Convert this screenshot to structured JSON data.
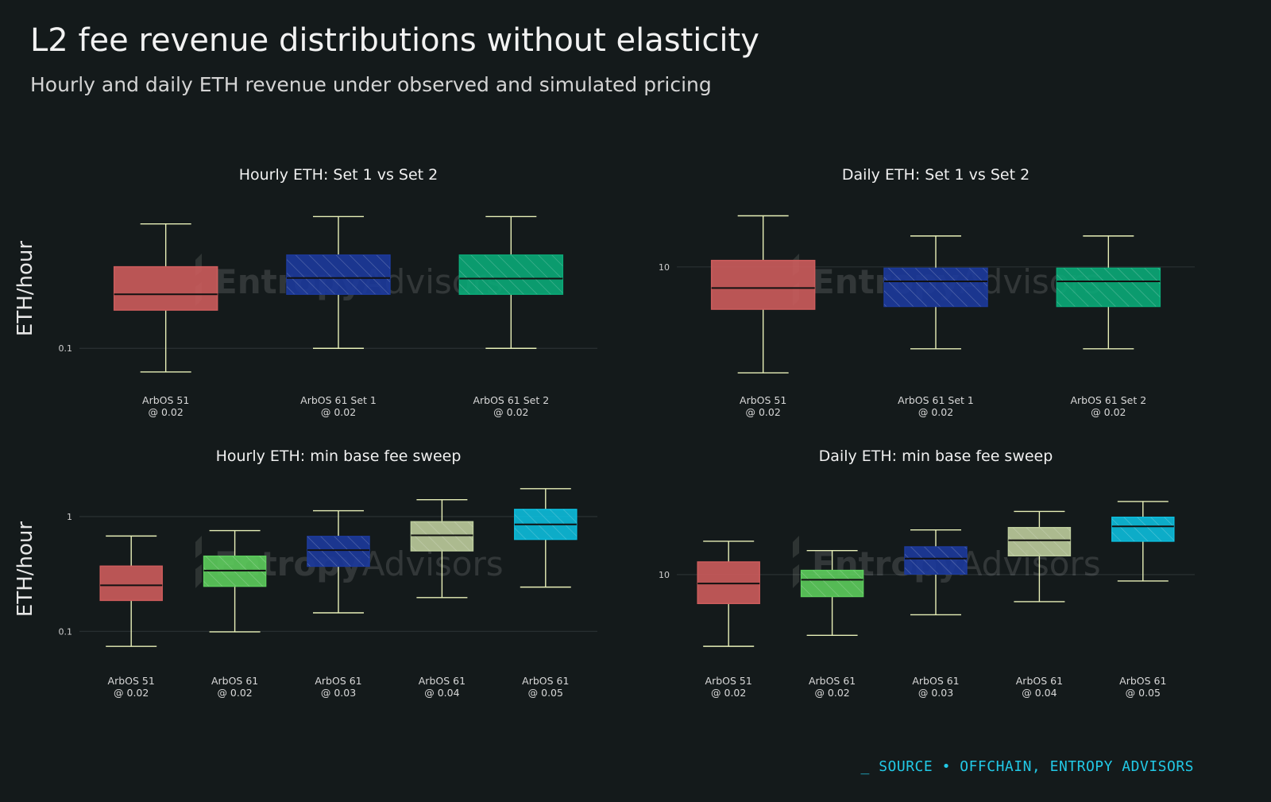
{
  "header": {
    "title": "L2 fee revenue distributions without elasticity",
    "subtitle": "Hourly and daily ETH revenue under observed and simulated pricing"
  },
  "watermark": {
    "text_a": "Entropy",
    "text_b": "Advisors"
  },
  "footer": {
    "source": "_ SOURCE • OFFCHAIN, ENTROPY ADVISORS"
  },
  "colors": {
    "background": "#141a1b",
    "whisker": "#e8f0b8",
    "median": "#111111",
    "gridline": "#2a3133",
    "red": "#cc5c5c",
    "green": "#5ccc5c",
    "blue": "#1c3a9c",
    "teal": "#0aaa78",
    "sage": "#bccc9c",
    "cyan": "#0cbcdc"
  },
  "chart_data": [
    {
      "type": "box",
      "title": "Hourly ETH: Set 1 vs Set 2",
      "ylabel": "ETH/hour",
      "yscale": "log",
      "ylim": [
        0.052,
        1.6
      ],
      "yticks": [
        {
          "value": 0.1,
          "label": "0.1"
        }
      ],
      "boxes": [
        {
          "label": [
            "ArbOS 51",
            "@ 0.02"
          ],
          "color": "red",
          "hatch": false,
          "low": 0.066,
          "q1": 0.196,
          "median": 0.259,
          "q3": 0.42,
          "high": 0.893
        },
        {
          "label": [
            "ArbOS 61 Set 1",
            "@ 0.02"
          ],
          "color": "blue",
          "hatch": true,
          "low": 0.1,
          "q1": 0.259,
          "median": 0.345,
          "q3": 0.516,
          "high": 1.016
        },
        {
          "label": [
            "ArbOS 61 Set 2",
            "@ 0.02"
          ],
          "color": "teal",
          "hatch": true,
          "low": 0.1,
          "q1": 0.259,
          "median": 0.341,
          "q3": 0.516,
          "high": 1.016
        }
      ]
    },
    {
      "type": "box",
      "title": "Daily ETH: Set 1 vs Set 2",
      "ylabel": "",
      "yscale": "log",
      "ylim": [
        1.25,
        38
      ],
      "yticks": [
        {
          "value": 10,
          "label": "10"
        }
      ],
      "boxes": [
        {
          "label": [
            "ArbOS 51",
            "@ 0.02"
          ],
          "color": "red",
          "hatch": false,
          "low": 1.56,
          "q1": 4.76,
          "median": 6.9,
          "q3": 11.2,
          "high": 24.5
        },
        {
          "label": [
            "ArbOS 61 Set 1",
            "@ 0.02"
          ],
          "color": "blue",
          "hatch": true,
          "low": 2.38,
          "q1": 5.0,
          "median": 7.76,
          "q3": 9.78,
          "high": 17.2
        },
        {
          "label": [
            "ArbOS 61 Set 2",
            "@ 0.02"
          ],
          "color": "teal",
          "hatch": true,
          "low": 2.38,
          "q1": 5.0,
          "median": 7.76,
          "q3": 9.78,
          "high": 17.2
        }
      ]
    },
    {
      "type": "box",
      "title": "Hourly ETH: min base fee sweep",
      "ylabel": "ETH/hour",
      "yscale": "log",
      "ylim": [
        0.046,
        2.4
      ],
      "yticks": [
        {
          "value": 0.1,
          "label": "0.1"
        },
        {
          "value": 1,
          "label": "1"
        }
      ],
      "boxes": [
        {
          "label": [
            "ArbOS 51",
            "@ 0.02"
          ],
          "color": "red",
          "hatch": false,
          "low": 0.074,
          "q1": 0.186,
          "median": 0.252,
          "q3": 0.37,
          "high": 0.677
        },
        {
          "label": [
            "ArbOS 61",
            "@ 0.02"
          ],
          "color": "green",
          "hatch": true,
          "low": 0.099,
          "q1": 0.247,
          "median": 0.338,
          "q3": 0.452,
          "high": 0.754
        },
        {
          "label": [
            "ArbOS 61",
            "@ 0.03"
          ],
          "color": "blue",
          "hatch": true,
          "low": 0.145,
          "q1": 0.369,
          "median": 0.51,
          "q3": 0.672,
          "high": 1.124
        },
        {
          "label": [
            "ArbOS 61",
            "@ 0.04"
          ],
          "color": "sage",
          "hatch": true,
          "low": 0.197,
          "q1": 0.503,
          "median": 0.686,
          "q3": 0.902,
          "high": 1.403
        },
        {
          "label": [
            "ArbOS 61",
            "@ 0.05"
          ],
          "color": "cyan",
          "hatch": true,
          "low": 0.243,
          "q1": 0.633,
          "median": 0.854,
          "q3": 1.155,
          "high": 1.75
        }
      ]
    },
    {
      "type": "box",
      "title": "Daily ETH: min base fee sweep",
      "ylabel": "",
      "yscale": "log",
      "ylim": [
        1.75,
        64
      ],
      "yticks": [
        {
          "value": 10,
          "label": "10"
        }
      ],
      "boxes": [
        {
          "label": [
            "ArbOS 51",
            "@ 0.02"
          ],
          "color": "red",
          "hatch": false,
          "low": 2.7,
          "q1": 5.9,
          "median": 8.5,
          "q3": 12.6,
          "high": 18.4
        },
        {
          "label": [
            "ArbOS 61",
            "@ 0.02"
          ],
          "color": "green",
          "hatch": true,
          "low": 3.3,
          "q1": 6.7,
          "median": 9.1,
          "q3": 10.8,
          "high": 15.5
        },
        {
          "label": [
            "ArbOS 61",
            "@ 0.03"
          ],
          "color": "blue",
          "hatch": true,
          "low": 4.8,
          "q1": 10.1,
          "median": 13.4,
          "q3": 16.6,
          "high": 22.6
        },
        {
          "label": [
            "ArbOS 61",
            "@ 0.04"
          ],
          "color": "sage",
          "hatch": true,
          "low": 6.1,
          "q1": 14.1,
          "median": 18.7,
          "q3": 23.6,
          "high": 31.7
        },
        {
          "label": [
            "ArbOS 61",
            "@ 0.05"
          ],
          "color": "cyan",
          "hatch": true,
          "low": 8.9,
          "q1": 18.4,
          "median": 24.1,
          "q3": 28.5,
          "high": 38.0
        }
      ]
    }
  ]
}
